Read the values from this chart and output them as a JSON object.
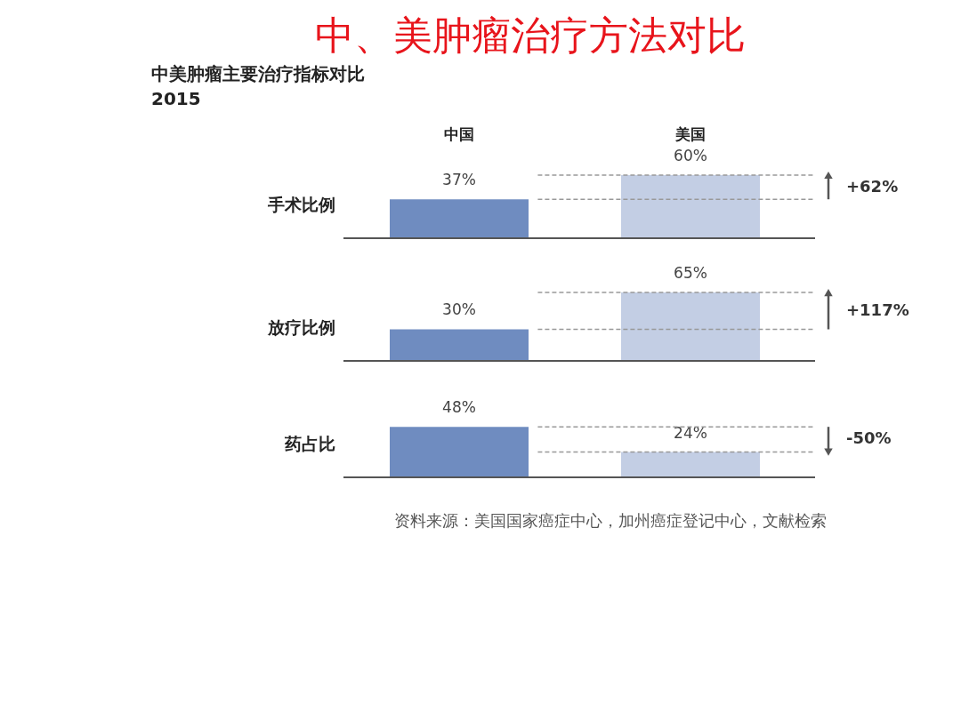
{
  "chart_data": [
    {
      "type": "bar",
      "title": "中、美肿瘤治疗方法对比",
      "subtitle": "中美肿瘤主要治疗指标对比\n2015",
      "ylabel": "手术比例",
      "categories": [
        "中国",
        "美国"
      ],
      "values": [
        37,
        60
      ],
      "value_labels": [
        "37%",
        "60%"
      ],
      "colors": [
        "#6f8cc0",
        "#c3cee4"
      ],
      "ref_lines": [
        {
          "axis": "y",
          "value": 37,
          "line_style": "dashed",
          "color": "#999999"
        },
        {
          "axis": "y",
          "value": 60,
          "line_style": "dashed",
          "color": "#999999"
        }
      ],
      "annotations": [
        "+62%"
      ],
      "tick_labels": "x"
    },
    {
      "type": "bar",
      "ylabel": "放疗比例",
      "categories": [
        null,
        null
      ],
      "values": [
        30,
        65
      ],
      "value_labels": [
        "30%",
        "65%"
      ],
      "colors": [
        "#6f8cc0",
        "#c3cee4"
      ],
      "ref_lines": [
        {
          "axis": "y",
          "value": 30,
          "line_style": "dashed",
          "color": "#999999"
        },
        {
          "axis": "y",
          "value": 65,
          "line_style": "dashed",
          "color": "#999999"
        }
      ],
      "annotations": [
        "+117%"
      ],
      "tick_labels": false
    },
    {
      "type": "bar",
      "ylabel": "药占比",
      "categories": [
        null,
        null
      ],
      "values": [
        48,
        24
      ],
      "value_labels": [
        "48%",
        "24%"
      ],
      "colors": [
        "#6f8cc0",
        "#c3cee4"
      ],
      "ref_lines": [
        {
          "axis": "y",
          "value": 48,
          "line_style": "dashed",
          "color": "#999999"
        },
        {
          "axis": "y",
          "value": 24,
          "line_style": "dashed",
          "color": "#999999"
        }
      ],
      "annotations": [
        "-50%",
        "资料来源：美国国家癌症中心，加州癌症登记中心，文献检索"
      ],
      "tick_labels": false
    }
  ]
}
